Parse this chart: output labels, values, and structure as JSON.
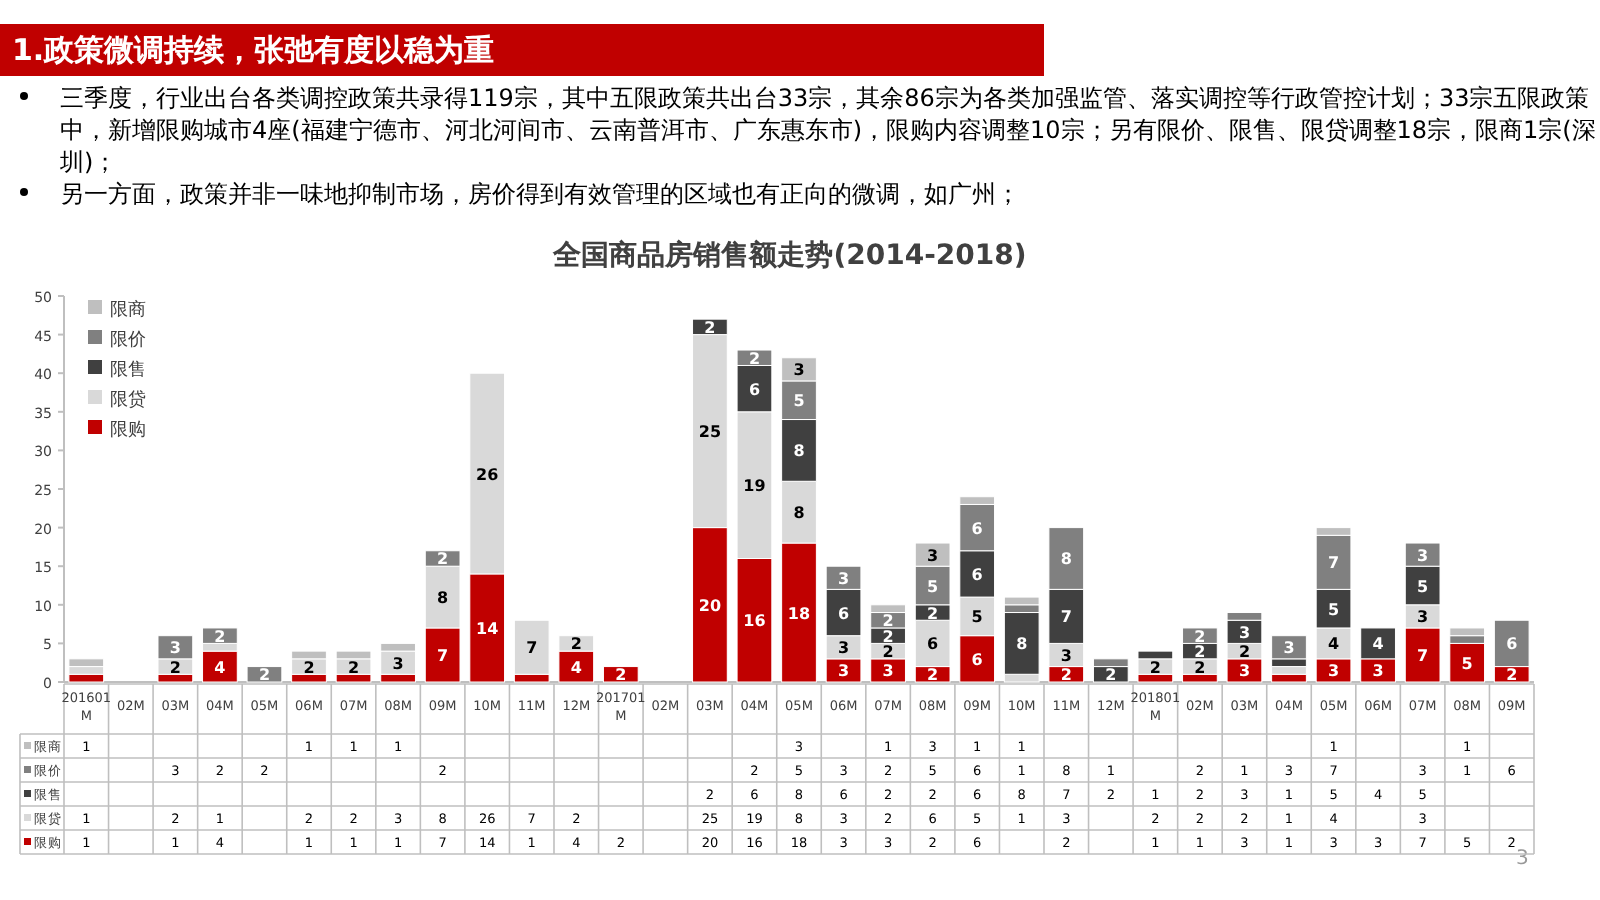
{
  "chart_data": {
    "type": "bar",
    "stacked": true,
    "title": "全国商品房销售额走势(2014-2018)",
    "categories": [
      "201601M",
      "02M",
      "03M",
      "04M",
      "05M",
      "06M",
      "07M",
      "08M",
      "09M",
      "10M",
      "11M",
      "12M",
      "201701M",
      "02M",
      "03M",
      "04M",
      "05M",
      "06M",
      "07M",
      "08M",
      "09M",
      "10M",
      "11M",
      "12M",
      "201801M",
      "02M",
      "03M",
      "04M",
      "05M",
      "06M",
      "07M",
      "08M",
      "09M"
    ],
    "series": [
      {
        "name": "限购",
        "color": "#c00000",
        "values": [
          1,
          null,
          1,
          4,
          null,
          1,
          1,
          1,
          7,
          14,
          1,
          4,
          2,
          null,
          20,
          16,
          18,
          3,
          3,
          2,
          6,
          null,
          2,
          null,
          1,
          1,
          3,
          1,
          3,
          3,
          7,
          5,
          2
        ],
        "value_labels": [
          "1",
          null,
          "1",
          "4",
          null,
          "1",
          "1",
          "1",
          "7",
          "14",
          "1",
          "4",
          "2",
          null,
          "20",
          "16",
          "18",
          "3",
          "3",
          "2",
          "6",
          null,
          "2",
          null,
          "1",
          "1",
          "3",
          "1",
          "3",
          "3",
          "7",
          "5",
          "2"
        ]
      },
      {
        "name": "限贷",
        "color": "#d9d9d9",
        "values": [
          1,
          null,
          2,
          1,
          null,
          2,
          2,
          3,
          8,
          26,
          7,
          2,
          null,
          null,
          25,
          19,
          8,
          3,
          2,
          6,
          5,
          1,
          3,
          null,
          2,
          2,
          2,
          1,
          4,
          null,
          3,
          null,
          null
        ],
        "value_labels": [
          "1",
          null,
          "2",
          "1",
          null,
          "2",
          "2",
          "3",
          "8",
          "26",
          "7",
          "2",
          null,
          null,
          "25",
          "19",
          "8",
          "3",
          "2",
          "6",
          "5",
          "1",
          "3",
          null,
          "2",
          "2",
          "2",
          "1",
          "4",
          null,
          "3",
          null,
          null
        ]
      },
      {
        "name": "限售",
        "color": "#404040",
        "values": [
          null,
          null,
          null,
          null,
          null,
          null,
          null,
          null,
          null,
          null,
          null,
          null,
          null,
          null,
          2,
          6,
          8,
          6,
          2,
          2,
          6,
          8,
          7,
          2,
          1,
          2,
          3,
          1,
          5,
          4,
          5,
          null,
          null
        ],
        "value_labels": [
          null,
          null,
          null,
          null,
          null,
          null,
          null,
          null,
          null,
          null,
          null,
          null,
          null,
          null,
          "2",
          "6",
          "8",
          "6",
          "2",
          "2",
          "6",
          "8",
          "7",
          "2",
          "1",
          "2",
          "3",
          "1",
          "5",
          "4",
          "5",
          null,
          null
        ]
      },
      {
        "name": "限价",
        "color": "#808080",
        "values": [
          null,
          null,
          3,
          2,
          2,
          null,
          null,
          null,
          2,
          null,
          null,
          null,
          null,
          null,
          null,
          2,
          5,
          3,
          2,
          5,
          6,
          1,
          8,
          1,
          null,
          2,
          1,
          3,
          7,
          null,
          3,
          1,
          6
        ],
        "value_labels": [
          null,
          null,
          "3",
          "2",
          "2",
          null,
          null,
          null,
          "2",
          null,
          null,
          null,
          null,
          null,
          null,
          "2",
          "5",
          "3",
          "2",
          "5",
          "6",
          "1",
          "8",
          "1",
          null,
          "2",
          "1",
          "3",
          "7",
          null,
          "3",
          "1",
          "6"
        ]
      },
      {
        "name": "限商",
        "color": "#bfbfbf",
        "values": [
          1,
          null,
          null,
          null,
          null,
          1,
          1,
          1,
          null,
          null,
          null,
          null,
          null,
          null,
          null,
          null,
          3,
          null,
          1,
          3,
          1,
          1,
          null,
          null,
          null,
          null,
          null,
          null,
          1,
          null,
          null,
          1,
          null
        ],
        "value_labels": [
          "1",
          null,
          null,
          null,
          null,
          "1",
          "1",
          "1",
          null,
          null,
          null,
          null,
          null,
          null,
          null,
          null,
          "3",
          null,
          "1",
          "3",
          "1",
          "1",
          null,
          null,
          null,
          null,
          null,
          null,
          "1",
          null,
          null,
          "1",
          null
        ]
      }
    ],
    "ylim": [
      0,
      50
    ],
    "yticks": [
      0,
      5,
      10,
      15,
      20,
      25,
      30,
      35,
      40,
      45,
      50
    ],
    "data_labels": true,
    "legend": "top left",
    "grid": false,
    "annotations": [
      "1.政策微调持续，张弛有度以稳为重",
      "三季度，行业出台各类调控政策共录得119宗，其中五限政策共出台33宗，其余86宗为各类加强监管、落实调控等行政管控计划；33宗五限政策中，新增限购城市4座(福建宁德市、河北河间市、云南普洱市、广东惠东市)，限购内容调整10宗；另有限价、限售、限贷调整18宗，限商1宗(深圳)；",
      "另一方面，政策并非一味地抑制市场，房价得到有效管理的区域也有正向的微调，如广州；",
      "3"
    ]
  }
}
